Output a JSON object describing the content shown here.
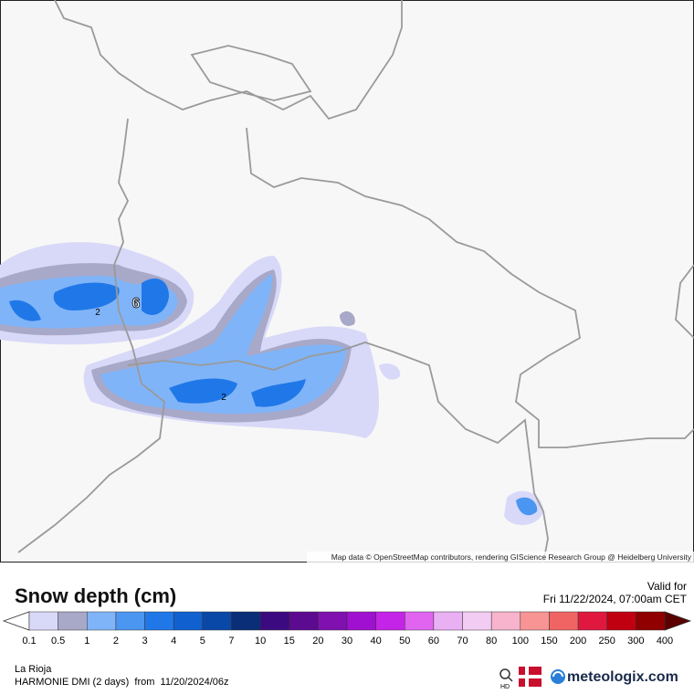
{
  "map": {
    "attribution": "Map data © OpenStreetMap contributors, rendering GIScience Research Group @ Heidelberg University",
    "contour_labels": [
      "2",
      "6",
      "2"
    ]
  },
  "legend": {
    "title": "Snow depth (cm)",
    "valid_label": "Valid for",
    "valid_time": "Fri 11/22/2024, 07:00am CET",
    "labels": [
      0.1,
      0.5,
      1,
      2,
      3,
      4,
      5,
      7,
      10,
      15,
      20,
      30,
      40,
      50,
      60,
      70,
      80,
      100,
      150,
      200,
      250,
      300,
      400
    ],
    "colors": [
      "#d8d8f8",
      "#a8a8c8",
      "#80b4f8",
      "#4a96f0",
      "#2078e8",
      "#1060d0",
      "#0a48a8",
      "#0a2e78",
      "#3c0a80",
      "#5c0a90",
      "#8010b0",
      "#a010d0",
      "#c424e8",
      "#e064f0",
      "#eab0f4",
      "#f2ccf2",
      "#f8b4cc",
      "#f89494",
      "#f06464",
      "#e01840",
      "#c00010",
      "#900000"
    ],
    "low_color": "#ffffff",
    "high_color": "#5a0000"
  },
  "footer": {
    "region": "La Rioja",
    "model": "HARMONIE DMI (2 days)  from  11/20/2024/06z",
    "hd": "HD",
    "brand": "meteologix.com"
  }
}
